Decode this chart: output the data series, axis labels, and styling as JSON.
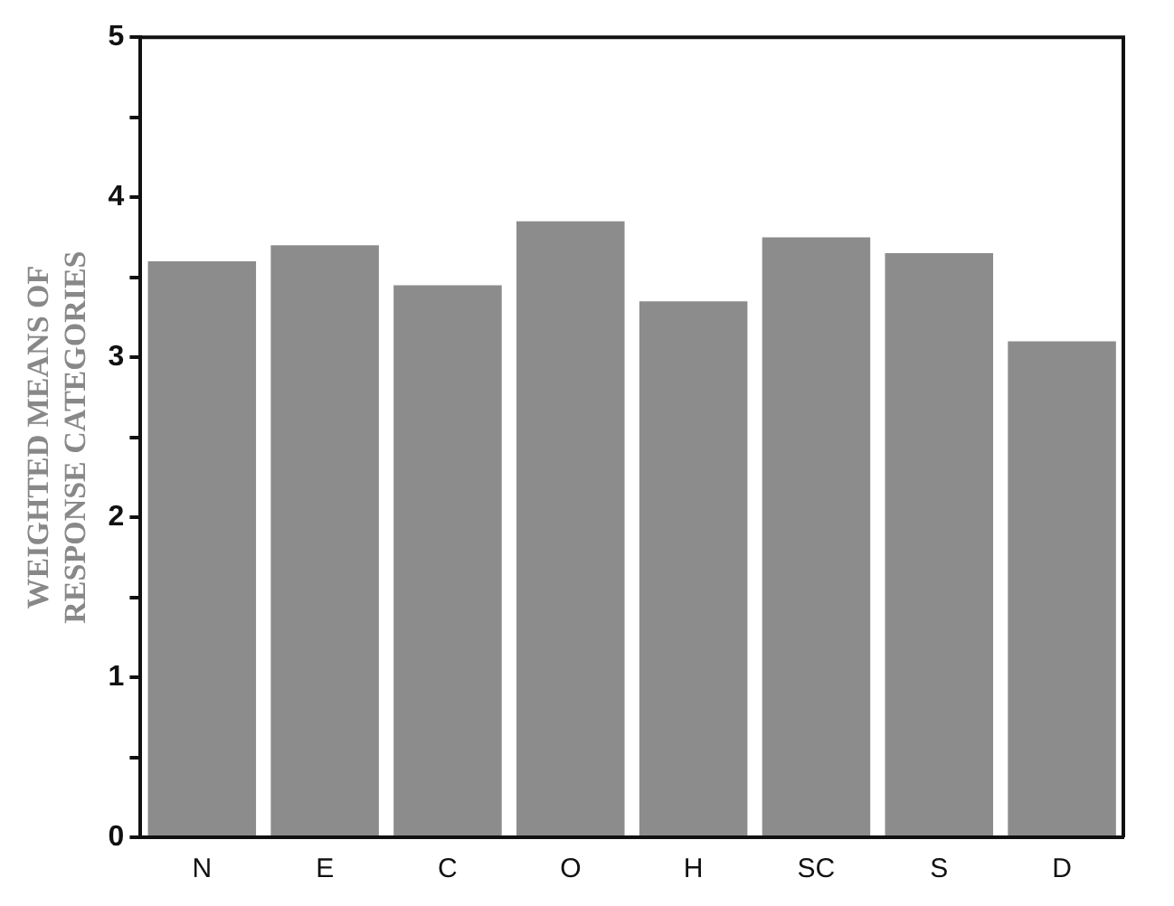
{
  "chart_data": {
    "type": "bar",
    "ylabel": "WEIGHTED MEANS OF\nRESPONSE CATEGORIES",
    "categories": [
      "N",
      "E",
      "C",
      "O",
      "H",
      "SC",
      "S",
      "D"
    ],
    "values": [
      3.6,
      3.7,
      3.45,
      3.85,
      3.35,
      3.75,
      3.65,
      3.1
    ],
    "color": "#8c8c8c",
    "ylim": [
      0,
      5
    ],
    "yticks": [
      0,
      {
        "value": 0.5,
        "label": null
      },
      1,
      {
        "value": 1.5,
        "label": null
      },
      2,
      {
        "value": 2.5,
        "label": null
      },
      3,
      {
        "value": 3.5,
        "label": null
      },
      4,
      {
        "value": 4.5,
        "label": null
      },
      5
    ],
    "grid": false,
    "legend": false
  }
}
